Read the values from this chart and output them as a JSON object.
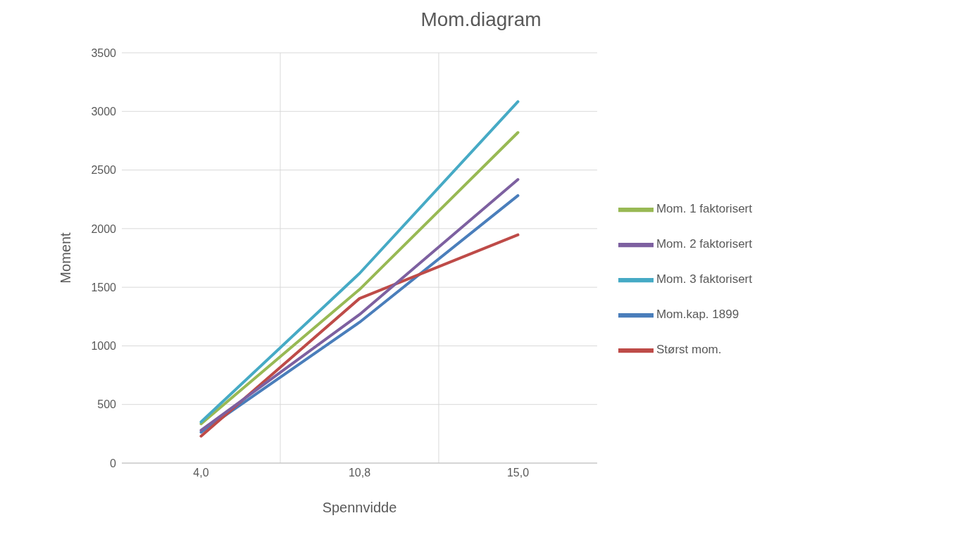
{
  "chart_data": {
    "type": "line",
    "title": "Mom.diagram",
    "xlabel": "Spennvidde",
    "ylabel": "Moment",
    "categories": [
      "4,0",
      "10,8",
      "15,0"
    ],
    "series": [
      {
        "name": "Mom.kap. 1899",
        "color": "#4a7ebb",
        "values": [
          263,
          1201,
          2282
        ]
      },
      {
        "name": "Størst mom.",
        "color": "#be4b48",
        "values": [
          230,
          1404,
          1947
        ]
      },
      {
        "name": "Mom. 1 faktorisert",
        "color": "#98b954",
        "values": [
          335,
          1481,
          2820
        ]
      },
      {
        "name": "Mom. 2 faktorisert",
        "color": "#7d60a0",
        "values": [
          280,
          1267,
          2419
        ]
      },
      {
        "name": "Mom. 3 faktorisert",
        "color": "#46aac5",
        "values": [
          351,
          1618,
          3083
        ]
      }
    ],
    "ylim": [
      0,
      3500
    ],
    "yticks": [
      0,
      500,
      1000,
      1500,
      2000,
      2500,
      3000,
      3500
    ],
    "grid": true,
    "legend": "right",
    "marker": "none",
    "line_style": "solid"
  }
}
